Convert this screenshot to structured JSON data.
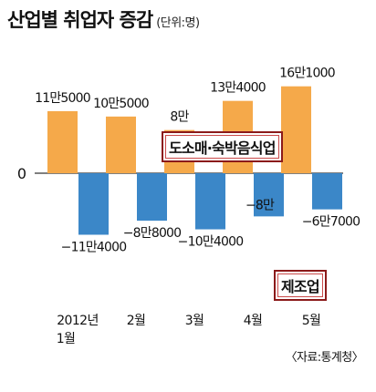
{
  "title": "산업별 취업자 증감",
  "unit": "(단위:명)",
  "source": "〈자료:통계청〉",
  "zero_label": "0",
  "colors": {
    "service": "#f5a94a",
    "manufacturing": "#3b87c8"
  },
  "chart_data": {
    "type": "bar",
    "categories": [
      [
        "2012년",
        "1월"
      ],
      [
        "2월"
      ],
      [
        "3월"
      ],
      [
        "4월"
      ],
      [
        "5월"
      ]
    ],
    "series": [
      {
        "name": "도소매·숙박음식업",
        "values": [
          115000,
          105000,
          80000,
          134000,
          161000
        ],
        "labels": [
          "11만5000",
          "10만5000",
          "8만",
          "13만4000",
          "16만1000"
        ]
      },
      {
        "name": "제조업",
        "values": [
          -114000,
          -88000,
          -104000,
          -80000,
          -67000
        ],
        "labels": [
          "−11만4000",
          "−8만8000",
          "−10만4000",
          "−8만",
          "−6만7000"
        ]
      }
    ],
    "ylim": [
      -140000,
      180000
    ]
  }
}
